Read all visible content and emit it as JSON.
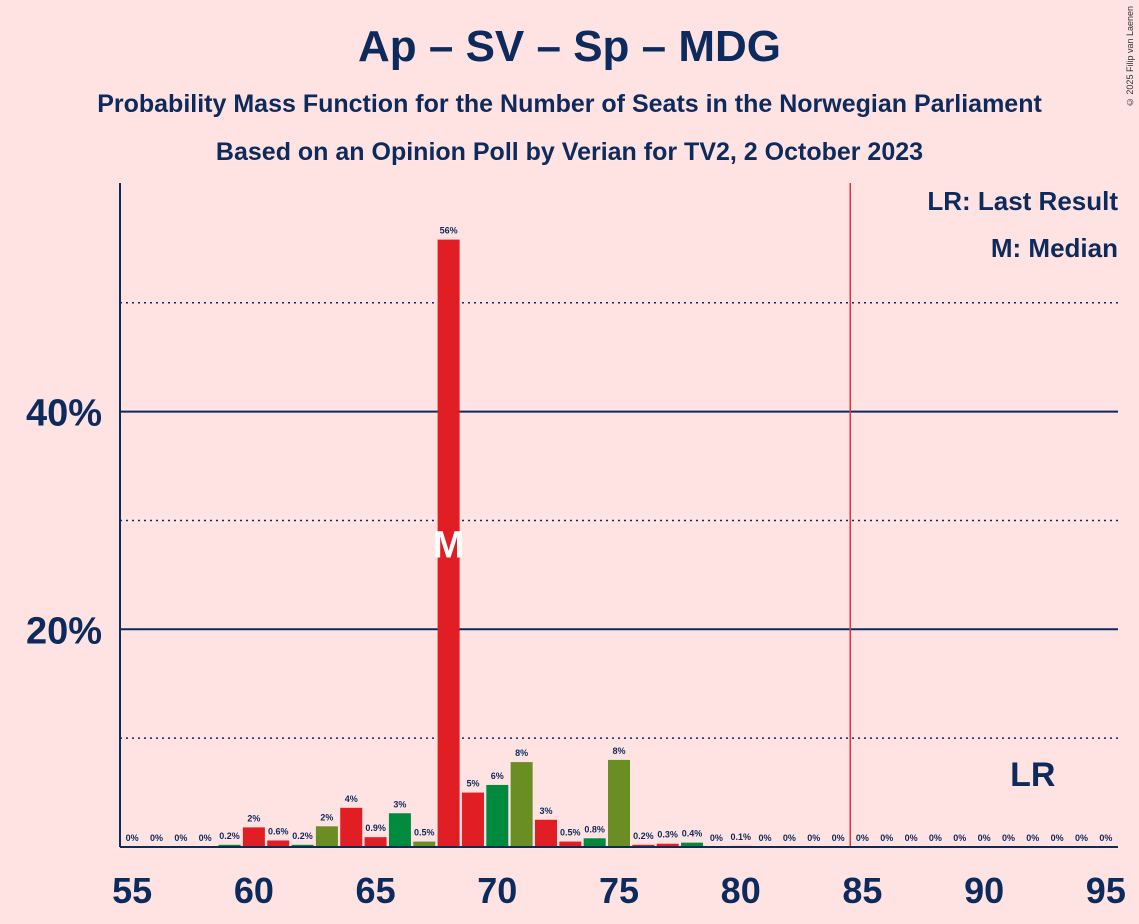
{
  "title": "Ap – SV – Sp – MDG",
  "subtitle": "Probability Mass Function for the Number of Seats in the Norwegian Parliament",
  "subtitle2": "Based on an Opinion Poll by Verian for TV2, 2 October 2023",
  "copyright": "© 2025 Filip van Laenen",
  "legend": {
    "lr": "LR: Last Result",
    "m": "M: Median"
  },
  "colors": {
    "background": "#FFE2E2",
    "text": "#0C2A5B",
    "red": "#E01E24",
    "green": "#008A3D",
    "olive": "#6A8E23",
    "majority_line": "#E0343C"
  },
  "chart_data": {
    "type": "bar",
    "x": [
      55,
      56,
      57,
      58,
      59,
      60,
      61,
      62,
      63,
      64,
      65,
      66,
      67,
      68,
      69,
      70,
      71,
      72,
      73,
      74,
      75,
      76,
      77,
      78,
      79,
      80,
      81,
      82,
      83,
      84,
      85,
      86,
      87,
      88,
      89,
      90,
      91,
      92,
      93,
      94,
      95
    ],
    "values": [
      0,
      0,
      0,
      0,
      0.2,
      1.8,
      0.6,
      0.2,
      1.9,
      3.6,
      0.9,
      3.1,
      0.5,
      55.8,
      5.0,
      5.7,
      7.8,
      2.5,
      0.5,
      0.8,
      8.0,
      0.2,
      0.3,
      0.4,
      0,
      0.1,
      0,
      0,
      0,
      0,
      0,
      0,
      0,
      0,
      0,
      0,
      0,
      0,
      0,
      0,
      0
    ],
    "labels": [
      "0%",
      "0%",
      "0%",
      "0%",
      "0.2%",
      "2%",
      "0.6%",
      "0.2%",
      "2%",
      "4%",
      "0.9%",
      "3%",
      "0.5%",
      "56%",
      "5%",
      "6%",
      "8%",
      "3%",
      "0.5%",
      "0.8%",
      "8%",
      "0.2%",
      "0.3%",
      "0.4%",
      "0%",
      "0.1%",
      "0%",
      "0%",
      "0%",
      "0%",
      "0%",
      "0%",
      "0%",
      "0%",
      "0%",
      "0%",
      "0%",
      "0%",
      "0%",
      "0%",
      "0%"
    ],
    "colors": [
      "red",
      "red",
      "red",
      "red",
      "green",
      "red",
      "red",
      "green",
      "olive",
      "red",
      "red",
      "green",
      "olive",
      "red",
      "red",
      "green",
      "olive",
      "red",
      "red",
      "green",
      "olive",
      "red",
      "red",
      "green",
      "olive",
      "red",
      "red",
      "green",
      "olive",
      "red",
      "red",
      "green",
      "olive",
      "red",
      "red",
      "green",
      "olive",
      "red",
      "red",
      "green",
      "olive"
    ],
    "x_ticks": [
      55,
      60,
      65,
      70,
      75,
      80,
      85,
      90,
      95
    ],
    "x_tick_labels": [
      "55",
      "60",
      "65",
      "70",
      "75",
      "80",
      "85",
      "90",
      "95"
    ],
    "y_ticks_major": [
      20,
      40
    ],
    "y_tick_labels": [
      "20%",
      "40%"
    ],
    "y_ticks_minor": [
      10,
      30,
      50
    ],
    "ylim": [
      0,
      61
    ],
    "xlim": [
      54.5,
      95.5
    ],
    "median": 68,
    "median_label": "M",
    "last_result": 92,
    "last_result_label": "LR",
    "majority": 84.5
  }
}
